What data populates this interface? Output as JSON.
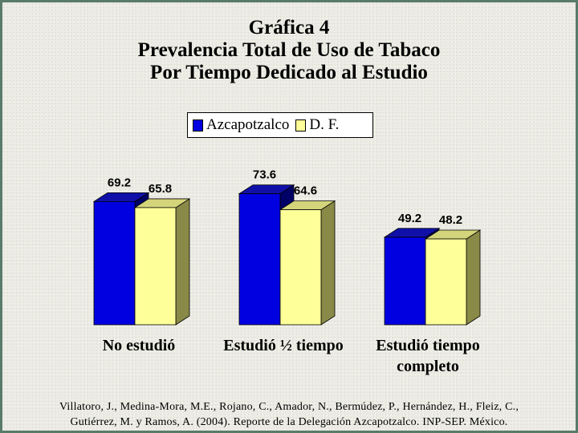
{
  "title_lines": [
    "Gráfica 4",
    "Prevalencia Total de Uso de Tabaco",
    "Por Tiempo Dedicado al Estudio"
  ],
  "legend": [
    {
      "label": "Azcapotzalco",
      "color": "#0000e0"
    },
    {
      "label": "D. F.",
      "color": "#ffff99"
    }
  ],
  "chart_data": {
    "type": "bar",
    "title": "Gráfica 4 Prevalencia Total de Uso de Tabaco Por Tiempo Dedicado al Estudio",
    "categories": [
      "No estudió",
      "Estudió ½ tiempo",
      "Estudió tiempo completo"
    ],
    "series": [
      {
        "name": "Azcapotzalco",
        "values": [
          69.2,
          73.6,
          49.2
        ],
        "color": "#0000e0"
      },
      {
        "name": "D. F.",
        "values": [
          65.8,
          64.6,
          48.2
        ],
        "color": "#ffff99"
      }
    ],
    "xlabel": "",
    "ylabel": "",
    "legend_position": "top",
    "grid": false
  },
  "category_labels": [
    [
      "No estudió"
    ],
    [
      "Estudió ½ tiempo"
    ],
    [
      "Estudió tiempo",
      "completo"
    ]
  ],
  "source_lines": [
    "Villatoro, J., Medina-Mora, M.E., Rojano, C., Amador, N., Bermúdez, P., Hernández, H., Fleiz, C.,",
    "Gutiérrez, M. y Ramos, A. (2004). Reporte de la Delegación Azcapotzalco. INP-SEP. México."
  ]
}
